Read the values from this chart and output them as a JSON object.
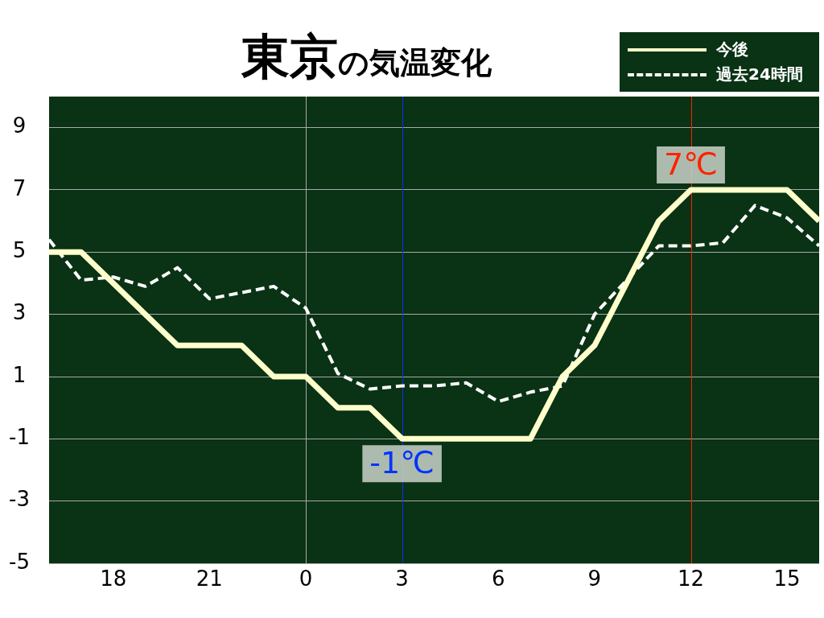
{
  "chart_data": {
    "type": "line",
    "title": "東京の気温変化",
    "categories": [
      null,
      null,
      "18",
      null,
      null,
      "21",
      null,
      null,
      "0",
      null,
      null,
      "3",
      null,
      null,
      "6",
      null,
      null,
      "9",
      null,
      null,
      "12",
      null,
      null,
      "15",
      null
    ],
    "series": [
      {
        "name": "今後",
        "color": "#ffffcc",
        "line_style": "solid",
        "values": [
          5,
          5,
          4,
          3,
          2,
          2,
          2,
          1,
          1,
          0,
          0,
          -1,
          -1,
          -1,
          -1,
          -1,
          1,
          2,
          4,
          6,
          7,
          7,
          7,
          7,
          6
        ]
      },
      {
        "name": "過去24時間",
        "color": "#ffffff",
        "line_style": "dashed",
        "values": [
          5.4,
          4.1,
          4.2,
          3.9,
          4.5,
          3.5,
          3.7,
          3.9,
          3.2,
          1.1,
          0.6,
          0.7,
          0.7,
          0.8,
          0.2,
          0.5,
          0.7,
          3.0,
          4.1,
          5.2,
          5.2,
          5.3,
          6.5,
          6.1,
          5.2
        ]
      }
    ],
    "ylim": [
      -5,
      10
    ],
    "yticks": [
      -5,
      -3,
      -1,
      1,
      3,
      5,
      7,
      9
    ],
    "ref_lines": [
      {
        "axis": "x",
        "value": "0",
        "color": "#aaaaaa"
      },
      {
        "axis": "x",
        "value": "3",
        "color": "#0033ff"
      },
      {
        "axis": "x",
        "value": "12",
        "color": "#ff2200"
      }
    ],
    "annotations": [
      {
        "text": "-1℃",
        "x": "3",
        "y": -1
      },
      {
        "text": "7℃",
        "x": "12",
        "y": 7
      }
    ],
    "grid": "y",
    "legend": "top right",
    "marker": "none"
  }
}
